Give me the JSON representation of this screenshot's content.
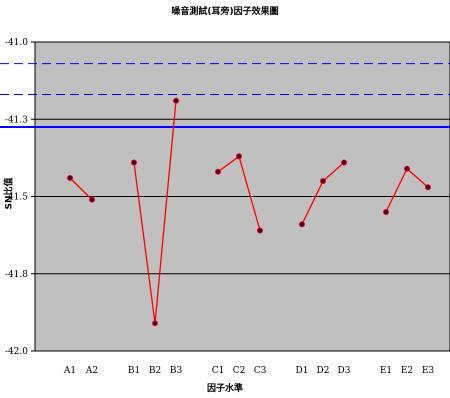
{
  "chart_data": {
    "type": "line",
    "title": "噪音測試(耳旁)因子效果圖",
    "xlabel": "因子水準",
    "ylabel": "SN比值",
    "ylim": [
      -42.0,
      -41.0
    ],
    "yticks": [
      "-41.0",
      "-41.3",
      "-41.5",
      "-41.8",
      "-42.0"
    ],
    "ytick_values": [
      -41.0,
      -41.25,
      -41.5,
      -41.75,
      -42.0
    ],
    "categories": [
      "A1",
      "A2",
      "B1",
      "B2",
      "B3",
      "C1",
      "C2",
      "C3",
      "D1",
      "D2",
      "D3",
      "E1",
      "E2",
      "E3"
    ],
    "series": [
      {
        "factor": "A",
        "x": [
          "A1",
          "A2"
        ],
        "values": [
          -41.44,
          -41.51
        ]
      },
      {
        "factor": "B",
        "x": [
          "B1",
          "B2",
          "B3"
        ],
        "values": [
          -41.39,
          -41.91,
          -41.19
        ]
      },
      {
        "factor": "C",
        "x": [
          "C1",
          "C2",
          "C3"
        ],
        "values": [
          -41.42,
          -41.37,
          -41.61
        ]
      },
      {
        "factor": "D",
        "x": [
          "D1",
          "D2",
          "D3"
        ],
        "values": [
          -41.59,
          -41.45,
          -41.39
        ]
      },
      {
        "factor": "E",
        "x": [
          "E1",
          "E2",
          "E3"
        ],
        "values": [
          -41.55,
          -41.41,
          -41.47
        ]
      }
    ],
    "reference_lines": [
      {
        "value": -41.07,
        "style": "dashed",
        "color": "#0000ff"
      },
      {
        "value": -41.17,
        "style": "dashed",
        "color": "#0000ff"
      },
      {
        "value": -41.275,
        "style": "solid",
        "color": "#0000ff"
      }
    ],
    "grid": true,
    "colors": {
      "plot_bg": "#c0c0c0",
      "line": "#ff0000",
      "marker_fill": "#400040",
      "marker_edge": "#ff0000",
      "ref_line": "#0000ff",
      "grid": "#000000"
    }
  }
}
